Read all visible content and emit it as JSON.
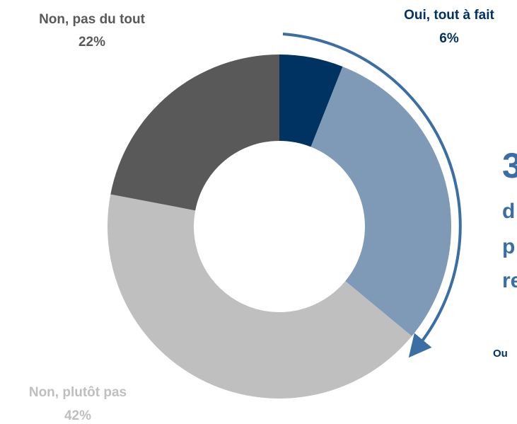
{
  "chart_data": {
    "type": "donut",
    "categories": [
      "Oui, tout à fait",
      null,
      "Non, plutôt pas",
      "Non, pas du tout"
    ],
    "values": [
      6,
      30,
      42,
      22
    ],
    "value_labels": [
      "6%",
      null,
      "42%",
      "22%"
    ],
    "colors": [
      "#003262",
      "#7f9ab6",
      "#bfbfbf",
      "#595959"
    ],
    "annotations": [
      "3",
      "d",
      "p",
      "re",
      "Ou"
    ]
  }
}
